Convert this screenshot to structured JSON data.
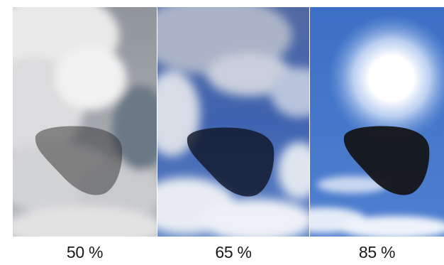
{
  "panels": [
    {
      "caption": "50 %",
      "tint_percent": 50,
      "sky_color": "#b9bcc0",
      "lens_color": "#3a3a3a"
    },
    {
      "caption": "65 %",
      "tint_percent": 65,
      "sky_color": "#5b7bb8",
      "lens_color": "#1b2031"
    },
    {
      "caption": "85 %",
      "tint_percent": 85,
      "sky_color": "#3f6ec0",
      "lens_color": "#15171c"
    }
  ]
}
